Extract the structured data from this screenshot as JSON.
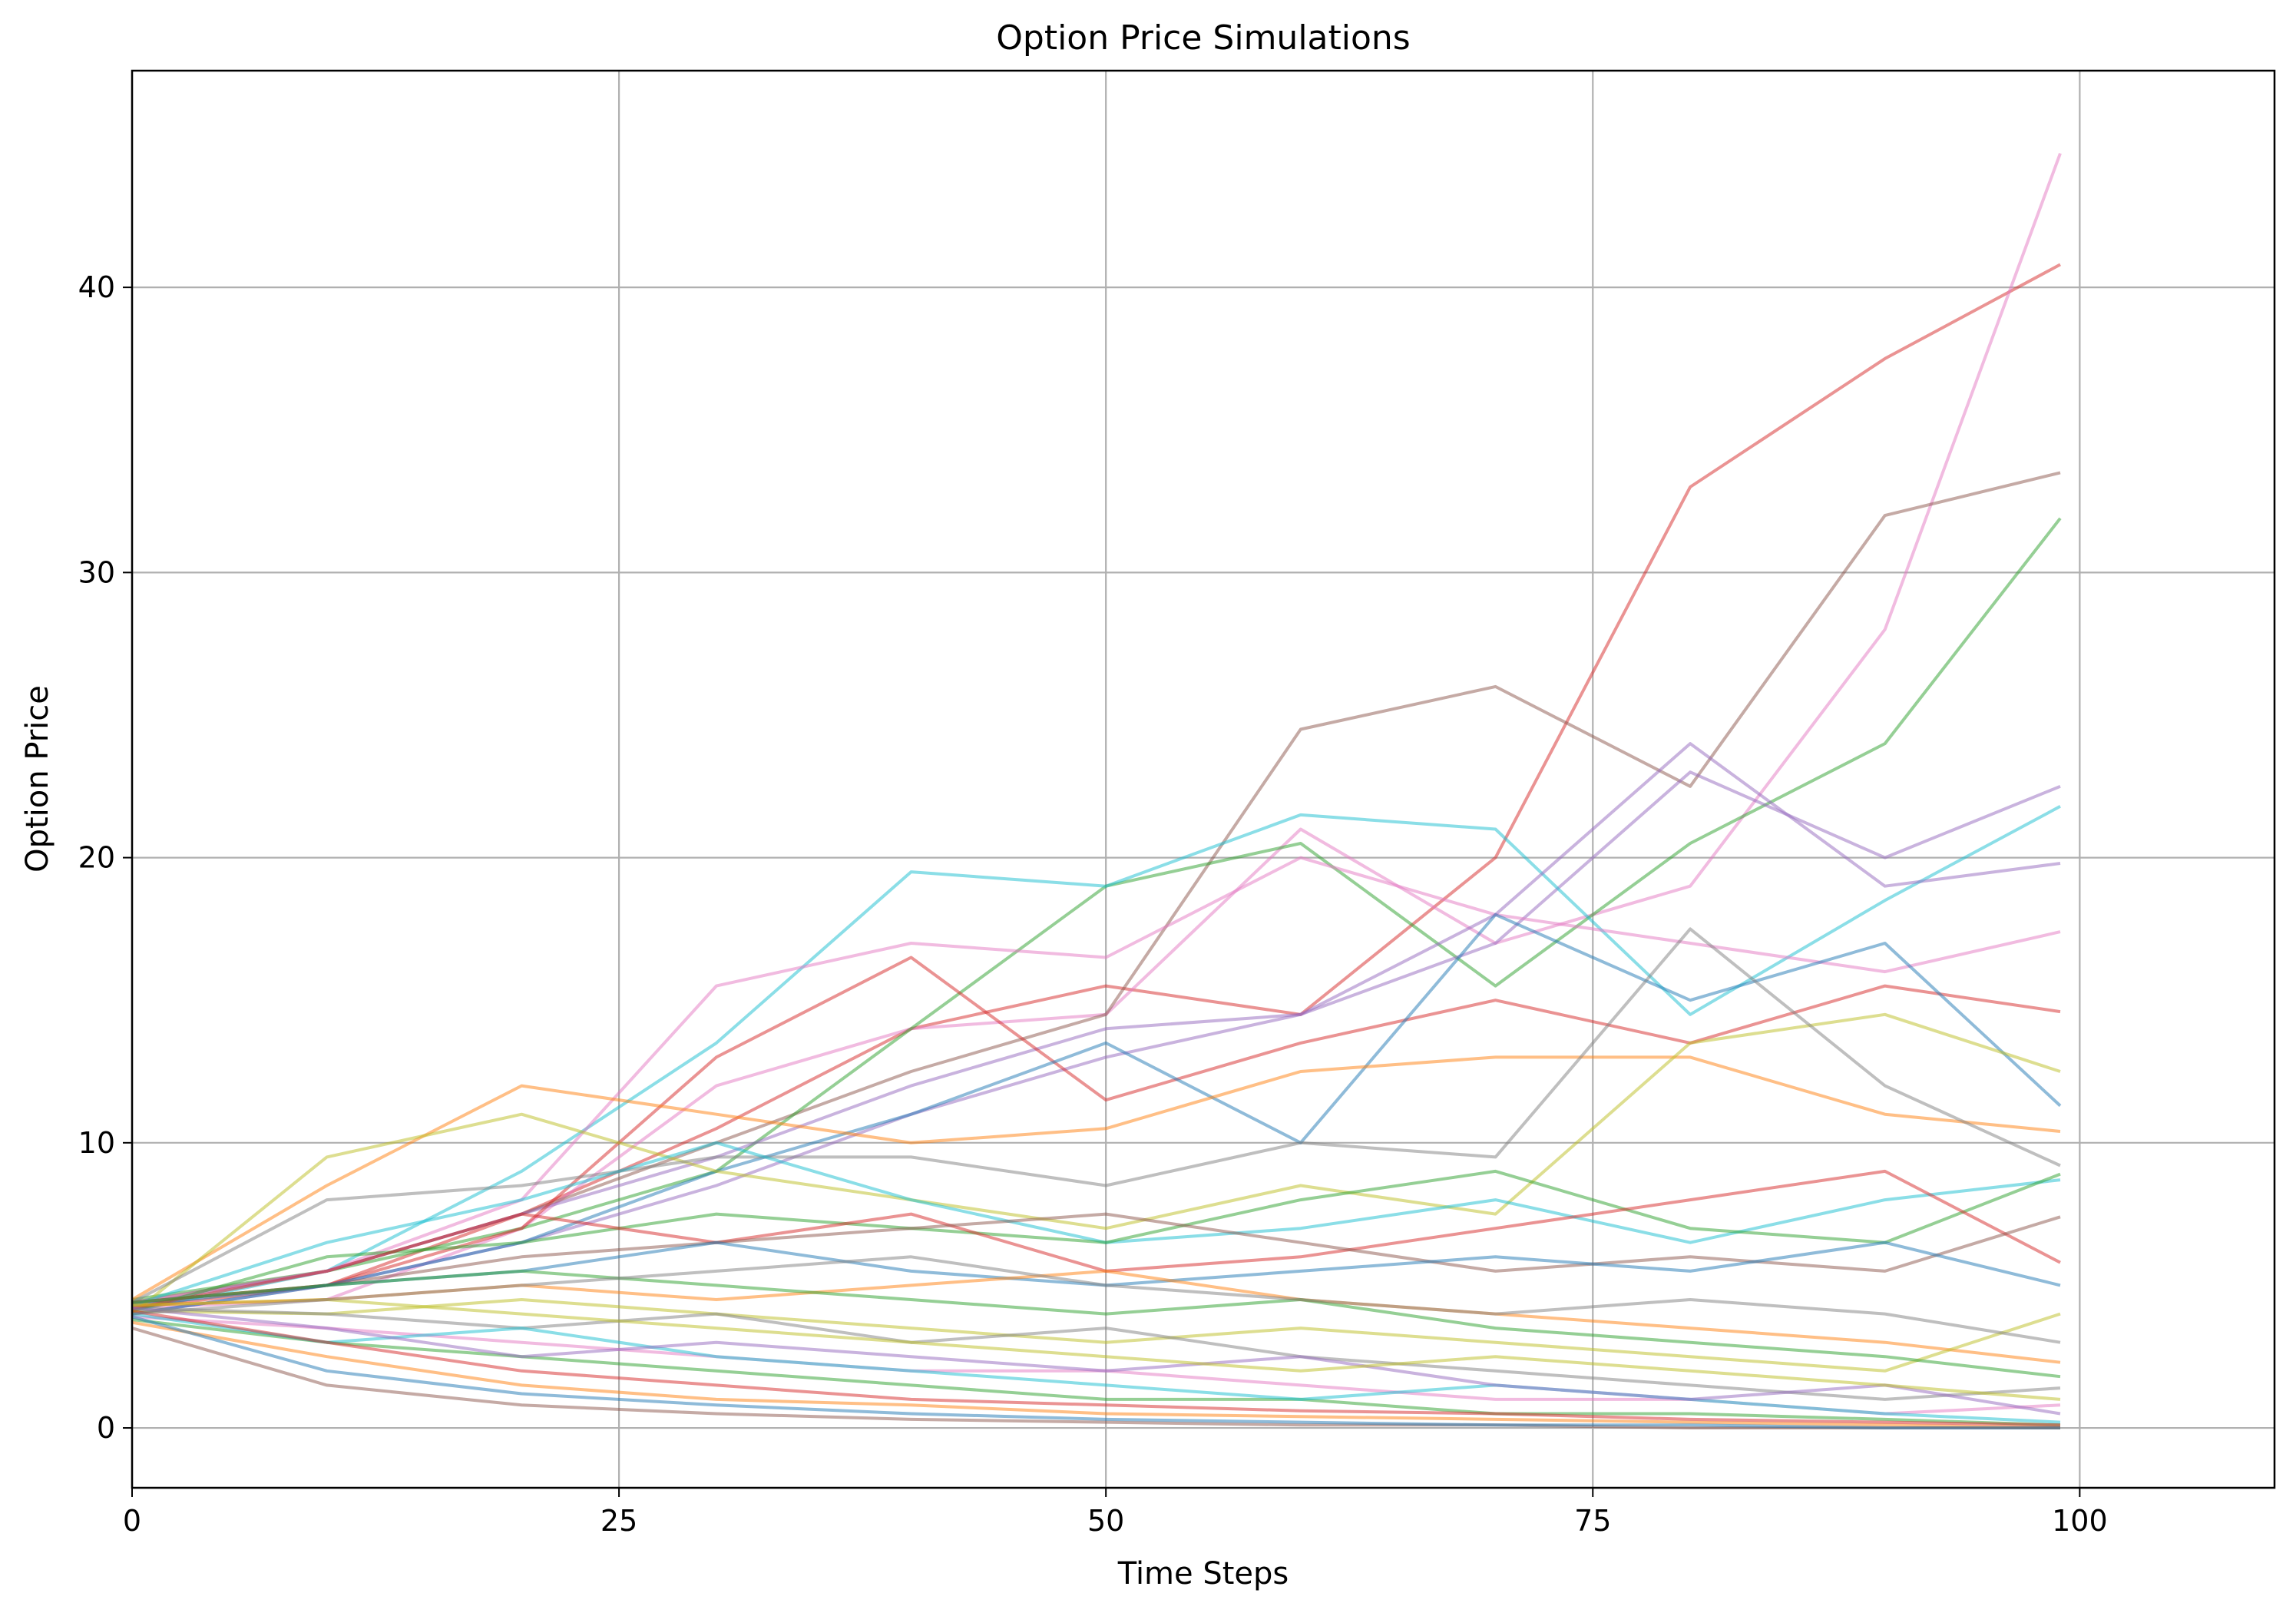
{
  "chart_data": {
    "type": "line",
    "title": "Option Price Simulations",
    "xlabel": "Time Steps",
    "ylabel": "Option Price",
    "xlim": [
      0,
      110
    ],
    "ylim": [
      -2.1,
      47.6
    ],
    "xticks": [
      0,
      25,
      50,
      75,
      100
    ],
    "yticks": [
      0,
      10,
      20,
      30,
      40
    ],
    "grid": true,
    "legend": "none",
    "line_alpha": 0.5,
    "palette": [
      "#1f77b4",
      "#ff7f0e",
      "#2ca02c",
      "#d62728",
      "#9467bd",
      "#8c564b",
      "#e377c2",
      "#7f7f7f",
      "#bcbd22",
      "#17becf"
    ],
    "x": [
      0,
      10,
      20,
      30,
      40,
      50,
      60,
      70,
      80,
      90,
      99
    ],
    "series": [
      {
        "color": "#d62728",
        "values": [
          4.4,
          5.0,
          7.5,
          10.5,
          14.0,
          15.5,
          14.5,
          20.0,
          33.0,
          37.5,
          40.8
        ]
      },
      {
        "color": "#e377c2",
        "values": [
          4.2,
          4.5,
          7.0,
          12.0,
          14.0,
          14.5,
          21.0,
          17.0,
          19.0,
          28.0,
          44.7
        ]
      },
      {
        "color": "#8c564b",
        "values": [
          4.4,
          5.5,
          7.5,
          10.0,
          12.5,
          14.5,
          24.5,
          26.0,
          22.5,
          32.0,
          33.5
        ]
      },
      {
        "color": "#2ca02c",
        "values": [
          4.5,
          5.5,
          7.0,
          9.0,
          14.0,
          19.0,
          20.5,
          15.5,
          20.5,
          24.0,
          31.9
        ]
      },
      {
        "color": "#9467bd",
        "values": [
          4.0,
          5.0,
          6.5,
          8.5,
          11.0,
          13.0,
          14.5,
          17.0,
          23.0,
          20.0,
          22.5
        ]
      },
      {
        "color": "#17becf",
        "values": [
          4.1,
          5.5,
          9.0,
          13.5,
          19.5,
          19.0,
          21.5,
          21.0,
          14.5,
          18.5,
          21.8
        ]
      },
      {
        "color": "#9467bd",
        "values": [
          4.3,
          5.5,
          7.5,
          9.5,
          12.0,
          14.0,
          14.5,
          18.0,
          24.0,
          19.0,
          19.8
        ]
      },
      {
        "color": "#e377c2",
        "values": [
          4.4,
          5.5,
          8.0,
          15.5,
          17.0,
          16.5,
          20.0,
          18.0,
          17.0,
          16.0,
          17.4
        ]
      },
      {
        "color": "#d62728",
        "values": [
          4.2,
          5.0,
          7.0,
          13.0,
          16.5,
          11.5,
          13.5,
          15.0,
          13.5,
          15.5,
          14.6
        ]
      },
      {
        "color": "#1f77b4",
        "values": [
          4.3,
          5.0,
          6.5,
          9.0,
          11.0,
          13.5,
          10.0,
          18.0,
          15.0,
          17.0,
          11.3
        ]
      },
      {
        "color": "#ff7f0e",
        "values": [
          4.5,
          8.5,
          12.0,
          11.0,
          10.0,
          10.5,
          12.5,
          13.0,
          13.0,
          11.0,
          10.4
        ]
      },
      {
        "color": "#bcbd22",
        "values": [
          4.0,
          9.5,
          11.0,
          9.0,
          8.0,
          7.0,
          8.5,
          7.5,
          13.5,
          14.5,
          12.5
        ]
      },
      {
        "color": "#7f7f7f",
        "values": [
          4.4,
          8.0,
          8.5,
          9.5,
          9.5,
          8.5,
          10.0,
          9.5,
          17.5,
          12.0,
          9.2
        ]
      },
      {
        "color": "#17becf",
        "values": [
          4.3,
          6.5,
          8.0,
          10.0,
          8.0,
          6.5,
          7.0,
          8.0,
          6.5,
          8.0,
          8.7
        ]
      },
      {
        "color": "#2ca02c",
        "values": [
          4.1,
          6.0,
          6.5,
          7.5,
          7.0,
          6.5,
          8.0,
          9.0,
          7.0,
          6.5,
          8.9
        ]
      },
      {
        "color": "#d62728",
        "values": [
          4.2,
          5.5,
          7.5,
          6.5,
          7.5,
          5.5,
          6.0,
          7.0,
          8.0,
          9.0,
          5.8
        ]
      },
      {
        "color": "#8c564b",
        "values": [
          4.4,
          5.0,
          6.0,
          6.5,
          7.0,
          7.5,
          6.5,
          5.5,
          6.0,
          5.5,
          7.4
        ]
      },
      {
        "color": "#1f77b4",
        "values": [
          4.0,
          5.0,
          5.5,
          6.5,
          5.5,
          5.0,
          5.5,
          6.0,
          5.5,
          6.5,
          5.0
        ]
      },
      {
        "color": "#ff7f0e",
        "values": [
          4.3,
          4.5,
          5.0,
          4.5,
          5.0,
          5.5,
          4.5,
          4.0,
          3.5,
          3.0,
          2.3
        ]
      },
      {
        "color": "#bcbd22",
        "values": [
          4.1,
          4.0,
          4.5,
          4.0,
          3.5,
          3.0,
          3.5,
          3.0,
          2.5,
          2.0,
          4.0
        ]
      },
      {
        "color": "#7f7f7f",
        "values": [
          4.2,
          4.0,
          3.5,
          4.0,
          3.0,
          3.5,
          2.5,
          2.0,
          1.5,
          1.0,
          1.4
        ]
      },
      {
        "color": "#e377c2",
        "values": [
          3.9,
          3.5,
          3.0,
          2.5,
          2.0,
          2.0,
          1.5,
          1.0,
          1.0,
          0.5,
          0.8
        ]
      },
      {
        "color": "#2ca02c",
        "values": [
          3.8,
          3.0,
          2.5,
          2.0,
          1.5,
          1.0,
          1.0,
          0.5,
          0.5,
          0.3,
          0.1
        ]
      },
      {
        "color": "#ff7f0e",
        "values": [
          3.7,
          2.5,
          1.5,
          1.0,
          0.8,
          0.5,
          0.4,
          0.3,
          0.2,
          0.1,
          0.0
        ]
      },
      {
        "color": "#8c564b",
        "values": [
          3.5,
          1.5,
          0.8,
          0.5,
          0.3,
          0.2,
          0.1,
          0.1,
          0.0,
          0.0,
          0.0
        ]
      },
      {
        "color": "#1f77b4",
        "values": [
          3.9,
          2.0,
          1.2,
          0.8,
          0.5,
          0.3,
          0.2,
          0.1,
          0.1,
          0.0,
          0.0
        ]
      },
      {
        "color": "#17becf",
        "values": [
          4.0,
          3.0,
          3.5,
          2.5,
          2.0,
          1.5,
          1.0,
          1.5,
          1.0,
          0.5,
          0.2
        ]
      },
      {
        "color": "#9467bd",
        "values": [
          4.2,
          3.5,
          2.5,
          3.0,
          2.5,
          2.0,
          2.5,
          1.5,
          1.0,
          1.5,
          0.5
        ]
      },
      {
        "color": "#d62728",
        "values": [
          4.1,
          3.0,
          2.0,
          1.5,
          1.0,
          0.8,
          0.6,
          0.5,
          0.3,
          0.2,
          0.1
        ]
      },
      {
        "color": "#bcbd22",
        "values": [
          4.3,
          4.5,
          4.0,
          3.5,
          3.0,
          2.5,
          2.0,
          2.5,
          2.0,
          1.5,
          1.0
        ]
      },
      {
        "color": "#2ca02c",
        "values": [
          4.4,
          5.0,
          5.5,
          5.0,
          4.5,
          4.0,
          4.5,
          3.5,
          3.0,
          2.5,
          1.8
        ]
      },
      {
        "color": "#7f7f7f",
        "values": [
          4.0,
          4.5,
          5.0,
          5.5,
          6.0,
          5.0,
          4.5,
          4.0,
          4.5,
          4.0,
          3.0
        ]
      }
    ]
  }
}
